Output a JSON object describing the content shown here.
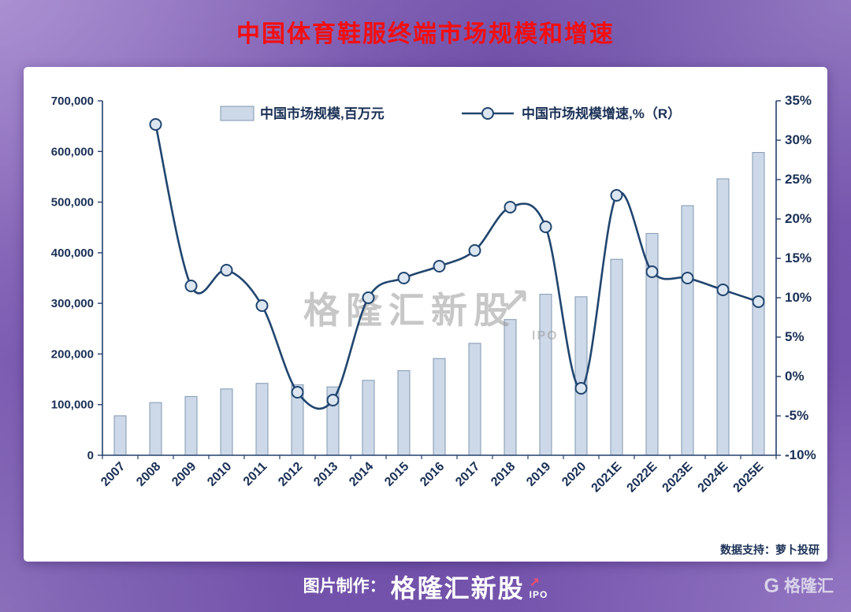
{
  "title": "中国体育鞋服终端市场规模和增速",
  "chart_data": {
    "type": "bar",
    "subtype": "bar+line combo, dual y-axis",
    "categories": [
      "2007",
      "2008",
      "2009",
      "2010",
      "2011",
      "2012",
      "2013",
      "2014",
      "2015",
      "2016",
      "2017",
      "2018",
      "2019",
      "2020",
      "2021E",
      "2022E",
      "2023E",
      "2024E",
      "2025E"
    ],
    "series": [
      {
        "name": "中国市场规模,百万元",
        "type": "bar",
        "axis": "left",
        "values": [
          78000,
          104000,
          116000,
          131000,
          142000,
          139000,
          135000,
          148000,
          167000,
          191000,
          221000,
          268000,
          318000,
          313000,
          387000,
          438000,
          493000,
          546000,
          598000
        ]
      },
      {
        "name": "中国市场规模增速,%（R）",
        "type": "line",
        "axis": "right",
        "values": [
          null,
          32,
          11.5,
          13.5,
          9,
          -2,
          -3,
          10,
          12.5,
          14,
          16,
          21.5,
          19,
          -1.5,
          23,
          13.3,
          12.5,
          11,
          9.5
        ]
      }
    ],
    "left_axis": {
      "min": 0,
      "max": 700000,
      "step": 100000,
      "tick_labels": [
        "0",
        "100,000",
        "200,000",
        "300,000",
        "400,000",
        "500,000",
        "600,000",
        "700,000"
      ]
    },
    "right_axis": {
      "min": -10,
      "max": 35,
      "step": 5,
      "tick_labels": [
        "-10%",
        "-5%",
        "0%",
        "5%",
        "10%",
        "15%",
        "20%",
        "25%",
        "30%",
        "35%"
      ]
    },
    "legend_position": "top-center",
    "grid": false
  },
  "watermark": {
    "text": "格隆汇新股",
    "arrow": "↗",
    "sub": "IPO"
  },
  "credit": {
    "text": "数据支持：萝卜投研"
  },
  "footer": {
    "prefix": "图片制作：",
    "brand": "格隆汇新股",
    "arrow": "↗",
    "brand_sub": "IPO",
    "logo_g": "G",
    "logo_text": "格隆汇"
  },
  "colors": {
    "bar_fill": "#cdd9e8",
    "bar_stroke": "#8097b1",
    "line": "#20456f",
    "marker_fill": "#dce6f1",
    "axis": "#24406b",
    "text": "#1a3055",
    "title": "#f50d0d",
    "watermark": "#909090"
  }
}
